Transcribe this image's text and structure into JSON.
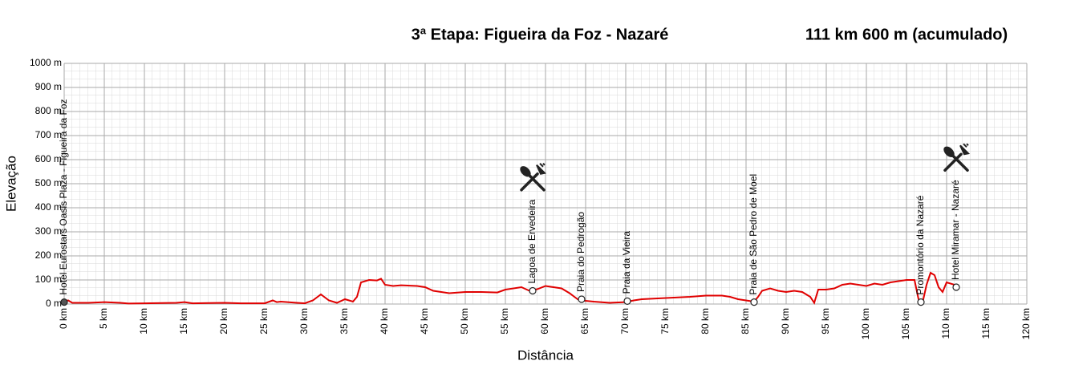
{
  "chart_data": {
    "type": "line",
    "title": "3ª Etapa: Figueira da Foz - Nazaré",
    "subtitle": "111 km 600 m (acumulado)",
    "x_label": "Distância",
    "y_label": "Elevação",
    "color": "#e00000",
    "grid": true,
    "xlim": [
      0,
      120
    ],
    "ylim": [
      0,
      1000
    ],
    "xticks": [
      {
        "value": 0,
        "label": "0 km"
      },
      {
        "value": 5,
        "label": "5 km"
      },
      {
        "value": 10,
        "label": "10 km"
      },
      {
        "value": 15,
        "label": "15 km"
      },
      {
        "value": 20,
        "label": "20 km"
      },
      {
        "value": 25,
        "label": "25 km"
      },
      {
        "value": 30,
        "label": "30 km"
      },
      {
        "value": 35,
        "label": "35 km"
      },
      {
        "value": 40,
        "label": "40 km"
      },
      {
        "value": 45,
        "label": "45 km"
      },
      {
        "value": 50,
        "label": "50 km"
      },
      {
        "value": 55,
        "label": "55 km"
      },
      {
        "value": 60,
        "label": "60 km"
      },
      {
        "value": 65,
        "label": "65 km"
      },
      {
        "value": 70,
        "label": "70 km"
      },
      {
        "value": 75,
        "label": "75 km"
      },
      {
        "value": 80,
        "label": "80 km"
      },
      {
        "value": 85,
        "label": "85 km"
      },
      {
        "value": 90,
        "label": "90 km"
      },
      {
        "value": 95,
        "label": "95 km"
      },
      {
        "value": 100,
        "label": "100 km"
      },
      {
        "value": 105,
        "label": "105 km"
      },
      {
        "value": 110,
        "label": "110 km"
      },
      {
        "value": 115,
        "label": "115 km"
      },
      {
        "value": 120,
        "label": "120 km"
      }
    ],
    "yticks": [
      {
        "value": 0,
        "label": "0 m"
      },
      {
        "value": 100,
        "label": "100 m"
      },
      {
        "value": 200,
        "label": "200 m"
      },
      {
        "value": 300,
        "label": "300 m"
      },
      {
        "value": 400,
        "label": "400 m"
      },
      {
        "value": 500,
        "label": "500 m"
      },
      {
        "value": 600,
        "label": "600 m"
      },
      {
        "value": 700,
        "label": "700 m"
      },
      {
        "value": 800,
        "label": "800 m"
      },
      {
        "value": 900,
        "label": "900 m"
      },
      {
        "value": 1000,
        "label": "1000 m"
      }
    ],
    "x": [
      0,
      0.5,
      1,
      3,
      5,
      7,
      8,
      10,
      14,
      15,
      16,
      20,
      22,
      25,
      26,
      26.5,
      27,
      29,
      30,
      31,
      32,
      33,
      34,
      35,
      36,
      36.5,
      37,
      38,
      39,
      39.5,
      40,
      41,
      42,
      44,
      45,
      46,
      47,
      48,
      50,
      52,
      54,
      55,
      57,
      58,
      59,
      60,
      62,
      63,
      64,
      64.5,
      66,
      68,
      70,
      71,
      72,
      75,
      78,
      80,
      82,
      83,
      84,
      85,
      86,
      86.5,
      87,
      88,
      89,
      90,
      91,
      92,
      93,
      93.5,
      94,
      95,
      96,
      97,
      98,
      100,
      101,
      102,
      103,
      104,
      105,
      106,
      106.5,
      107,
      107.5,
      108,
      108.5,
      109,
      109.5,
      110,
      111,
      111.6
    ],
    "values": [
      10,
      15,
      5,
      5,
      8,
      5,
      2,
      3,
      5,
      8,
      3,
      5,
      3,
      3,
      15,
      8,
      10,
      5,
      3,
      15,
      40,
      15,
      5,
      20,
      10,
      30,
      90,
      100,
      98,
      105,
      80,
      75,
      78,
      75,
      70,
      55,
      50,
      45,
      50,
      50,
      48,
      60,
      70,
      55,
      62,
      75,
      65,
      45,
      20,
      15,
      10,
      5,
      8,
      15,
      20,
      25,
      30,
      35,
      35,
      30,
      20,
      15,
      10,
      30,
      55,
      65,
      55,
      50,
      55,
      50,
      30,
      5,
      60,
      60,
      65,
      80,
      85,
      75,
      85,
      80,
      90,
      95,
      100,
      100,
      20,
      5,
      80,
      130,
      120,
      70,
      50,
      90,
      80,
      70
    ],
    "waypoints": [
      {
        "x": 0,
        "y": 8,
        "label": "Hotel Eurostars Oasis Plaza - Figueira da Foz",
        "restaurant": false
      },
      {
        "x": 58.4,
        "y": 55,
        "label": "Lagoa de Ervedeira",
        "restaurant": true
      },
      {
        "x": 64.5,
        "y": 20,
        "label": "Praia do Pedrogão",
        "restaurant": false
      },
      {
        "x": 70.2,
        "y": 12,
        "label": "Praia da Vieira",
        "restaurant": false
      },
      {
        "x": 86,
        "y": 8,
        "label": "Praia de São Pedro de Moel",
        "restaurant": false
      },
      {
        "x": 106.8,
        "y": 8,
        "label": "Promontório da Nazaré",
        "restaurant": false
      },
      {
        "x": 111.2,
        "y": 70,
        "label": "Hotel Miramar - Nazaré",
        "restaurant": true
      }
    ]
  }
}
